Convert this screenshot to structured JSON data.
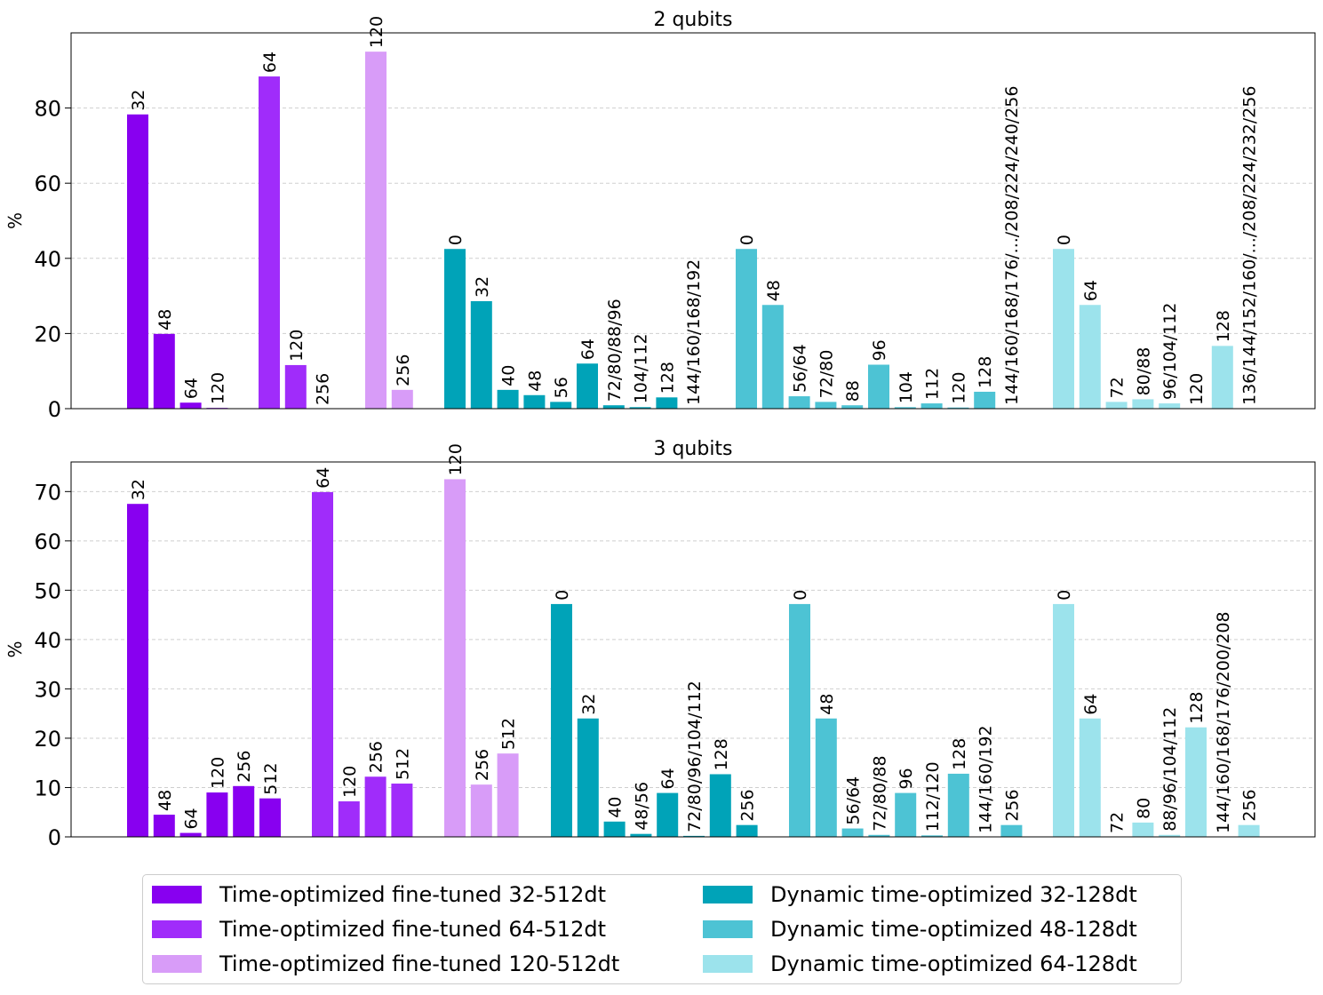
{
  "chart_data": [
    {
      "type": "bar",
      "title": "2 qubits",
      "xlabel": "",
      "ylabel": "%",
      "ylim": [
        0,
        100
      ],
      "yticks": [
        0,
        20,
        40,
        60,
        80
      ],
      "grid": "y dashed",
      "groups": [
        {
          "series": "Time-optimized fine-tuned 32-512dt",
          "color": "#8800f0",
          "categories": [
            "32",
            "48",
            "64",
            "120"
          ],
          "values": [
            78.3,
            19.9,
            1.6,
            0.2
          ]
        },
        {
          "series": "Time-optimized fine-tuned 64-512dt",
          "color": "#a02cfa",
          "categories": [
            "64",
            "120",
            "256"
          ],
          "values": [
            88.4,
            11.6,
            0.0
          ]
        },
        {
          "series": "Time-optimized fine-tuned 120-512dt",
          "color": "#d89cf8",
          "categories": [
            "120",
            "256"
          ],
          "values": [
            95.0,
            5.0
          ]
        },
        {
          "series": "Dynamic time-optimized 32-128dt",
          "color": "#00a3b8",
          "categories": [
            "0",
            "32",
            "40",
            "48",
            "56",
            "64",
            "72/80/88/96",
            "104/112",
            "128",
            "144/160/168/192"
          ],
          "values": [
            42.5,
            28.6,
            5.0,
            3.6,
            1.8,
            12.0,
            0.9,
            0.4,
            3.0,
            0.0
          ]
        },
        {
          "series": "Dynamic time-optimized 48-128dt",
          "color": "#4dc3d4",
          "categories": [
            "0",
            "48",
            "56/64",
            "72/80",
            "88",
            "96",
            "104",
            "112",
            "120",
            "128",
            "144/160/168/176/.../208/224/240/256"
          ],
          "values": [
            42.5,
            27.6,
            3.3,
            1.8,
            0.9,
            11.7,
            0.4,
            1.4,
            0.3,
            4.5,
            0.0
          ]
        },
        {
          "series": "Dynamic time-optimized 64-128dt",
          "color": "#9ce3ec",
          "categories": [
            "0",
            "64",
            "72",
            "80/88",
            "96/104/112",
            "120",
            "128",
            "136/144/152/160/.../208/224/232/256"
          ],
          "values": [
            42.5,
            27.6,
            1.8,
            2.5,
            1.4,
            0.0,
            16.7,
            0.0
          ]
        }
      ]
    },
    {
      "type": "bar",
      "title": "3 qubits",
      "xlabel": "",
      "ylabel": "%",
      "ylim": [
        0,
        76
      ],
      "yticks": [
        0,
        10,
        20,
        30,
        40,
        50,
        60,
        70
      ],
      "grid": "y dashed",
      "groups": [
        {
          "series": "Time-optimized fine-tuned 32-512dt",
          "color": "#8800f0",
          "categories": [
            "32",
            "48",
            "64",
            "120",
            "256",
            "512"
          ],
          "values": [
            67.5,
            4.5,
            0.8,
            9.0,
            10.3,
            7.8
          ]
        },
        {
          "series": "Time-optimized fine-tuned 64-512dt",
          "color": "#a02cfa",
          "categories": [
            "64",
            "120",
            "256",
            "512"
          ],
          "values": [
            69.9,
            7.2,
            12.2,
            10.8
          ]
        },
        {
          "series": "Time-optimized fine-tuned 120-512dt",
          "color": "#d89cf8",
          "categories": [
            "120",
            "256",
            "512"
          ],
          "values": [
            72.5,
            10.6,
            16.9
          ]
        },
        {
          "series": "Dynamic time-optimized 32-128dt",
          "color": "#00a3b8",
          "categories": [
            "0",
            "32",
            "40",
            "48/56",
            "64",
            "72/80/96/104/112",
            "128",
            "256"
          ],
          "values": [
            47.2,
            24.0,
            3.1,
            0.6,
            8.9,
            0.2,
            12.7,
            2.4
          ]
        },
        {
          "series": "Dynamic time-optimized 48-128dt",
          "color": "#4dc3d4",
          "categories": [
            "0",
            "48",
            "56/64",
            "72/80/88",
            "96",
            "112/120",
            "128",
            "144/160/192",
            "256"
          ],
          "values": [
            47.2,
            24.0,
            1.7,
            0.4,
            8.9,
            0.3,
            12.8,
            0.0,
            2.4
          ]
        },
        {
          "series": "Dynamic time-optimized 64-128dt",
          "color": "#9ce3ec",
          "categories": [
            "0",
            "64",
            "72",
            "80",
            "88/96/104/112",
            "128",
            "144/160/168/176/200/208",
            "256"
          ],
          "values": [
            47.2,
            24.0,
            0.0,
            2.9,
            0.4,
            22.2,
            0.0,
            2.4
          ]
        }
      ]
    }
  ],
  "legend": {
    "placement": "bottom-center",
    "columns": 2,
    "items": [
      {
        "label": "Time-optimized fine-tuned 32-512dt",
        "color": "#8800f0"
      },
      {
        "label": "Time-optimized fine-tuned 64-512dt",
        "color": "#a02cfa"
      },
      {
        "label": "Time-optimized fine-tuned 120-512dt",
        "color": "#d89cf8"
      },
      {
        "label": "Dynamic time-optimized 32-128dt",
        "color": "#00a3b8"
      },
      {
        "label": "Dynamic time-optimized 48-128dt",
        "color": "#4dc3d4"
      },
      {
        "label": "Dynamic time-optimized 64-128dt",
        "color": "#9ce3ec"
      }
    ]
  }
}
